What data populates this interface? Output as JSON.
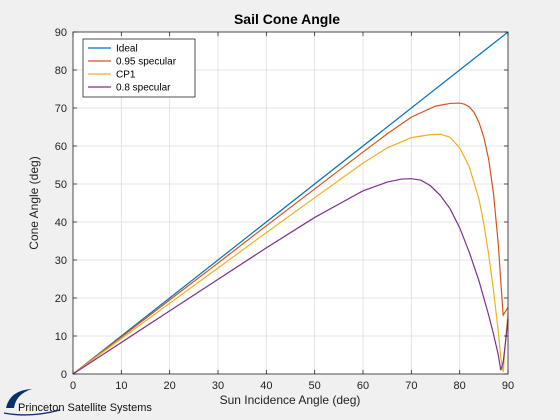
{
  "chart_data": {
    "type": "line",
    "title": "Sail Cone Angle",
    "xlabel": "Sun Incidence Angle (deg)",
    "ylabel": "Cone Angle (deg)",
    "xlim": [
      0,
      90
    ],
    "ylim": [
      0,
      90
    ],
    "xticks": [
      0,
      10,
      20,
      30,
      40,
      50,
      60,
      70,
      80,
      90
    ],
    "yticks": [
      0,
      10,
      20,
      30,
      40,
      50,
      60,
      70,
      80,
      90
    ],
    "grid": true,
    "legend_position": "top-left",
    "series": [
      {
        "name": "Ideal",
        "color": "#0072bd",
        "x": [
          0,
          90
        ],
        "y": [
          0,
          90
        ]
      },
      {
        "name": "0.95 specular",
        "color": "#d95319",
        "x": [
          0,
          10,
          20,
          30,
          40,
          50,
          60,
          65,
          70,
          75,
          78,
          80,
          81,
          82,
          83,
          84,
          85,
          86,
          87,
          88,
          88.5,
          89,
          89.5,
          90
        ],
        "y": [
          0,
          9.7,
          19.5,
          29.2,
          39,
          48.7,
          58.4,
          63.2,
          67.6,
          70.5,
          71.2,
          71.3,
          71,
          70.3,
          68.8,
          66.2,
          62.3,
          56.5,
          47.5,
          34,
          24.5,
          15.5,
          16.5,
          17.5
        ]
      },
      {
        "name": "CP1",
        "color": "#edb120",
        "x": [
          0,
          10,
          20,
          30,
          40,
          50,
          60,
          65,
          70,
          74,
          76,
          78,
          80,
          82,
          84,
          85,
          86,
          87,
          88,
          88.5,
          89,
          89.5,
          90
        ],
        "y": [
          0,
          9.3,
          18.6,
          27.9,
          37.2,
          46.4,
          55.5,
          59.5,
          62.2,
          63,
          63.1,
          62.3,
          59.5,
          54.5,
          46,
          39.5,
          31.5,
          22,
          11,
          4.5,
          0.5,
          9,
          16
        ]
      },
      {
        "name": "0.8 specular",
        "color": "#7e2f8e",
        "x": [
          0,
          10,
          20,
          30,
          40,
          50,
          55,
          60,
          65,
          68,
          70,
          72,
          74,
          76,
          78,
          80,
          82,
          84,
          86,
          87,
          88,
          88.5,
          89,
          89.5,
          90
        ],
        "y": [
          0,
          8.3,
          16.6,
          24.9,
          33.2,
          41.2,
          44.7,
          48.2,
          50.5,
          51.3,
          51.4,
          51,
          49.5,
          47,
          43.5,
          38.5,
          32,
          24.5,
          15.5,
          10.5,
          5,
          1,
          3,
          8.5,
          14.5
        ]
      }
    ]
  },
  "branding": {
    "logo_text": "Princeton Satellite Systems",
    "logo_color": "#0b2f6b"
  }
}
